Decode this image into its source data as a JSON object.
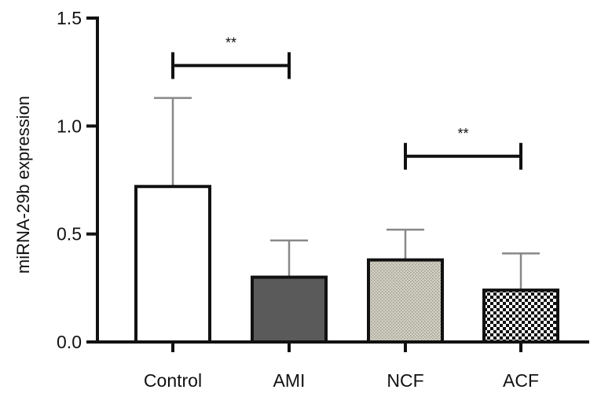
{
  "chart_data": {
    "type": "bar",
    "title": "",
    "xlabel": "",
    "ylabel": "miRNA-29b expression",
    "ylim": [
      0,
      1.5
    ],
    "yticks": [
      0.0,
      0.5,
      1.0,
      1.5
    ],
    "ytick_labels": [
      "0.0",
      "0.5",
      "1.0",
      "1.5"
    ],
    "categories": [
      "Control",
      "AMI",
      "NCF",
      "ACF"
    ],
    "values": [
      0.72,
      0.3,
      0.38,
      0.24
    ],
    "error_upper": [
      0.41,
      0.17,
      0.14,
      0.17
    ],
    "fills": [
      "white",
      "dark-gray",
      "dotted-beige",
      "checker"
    ],
    "colors": {
      "axis": "#111111",
      "bar_outline": "#111111",
      "ami_fill": "#5a5a5a",
      "ncf_fill": "#d2d0c4",
      "error_bar": "#888888"
    },
    "significance": [
      {
        "from": 0,
        "to": 1,
        "y": 1.28,
        "label": "**"
      },
      {
        "from": 2,
        "to": 3,
        "y": 0.86,
        "label": "**"
      }
    ]
  }
}
